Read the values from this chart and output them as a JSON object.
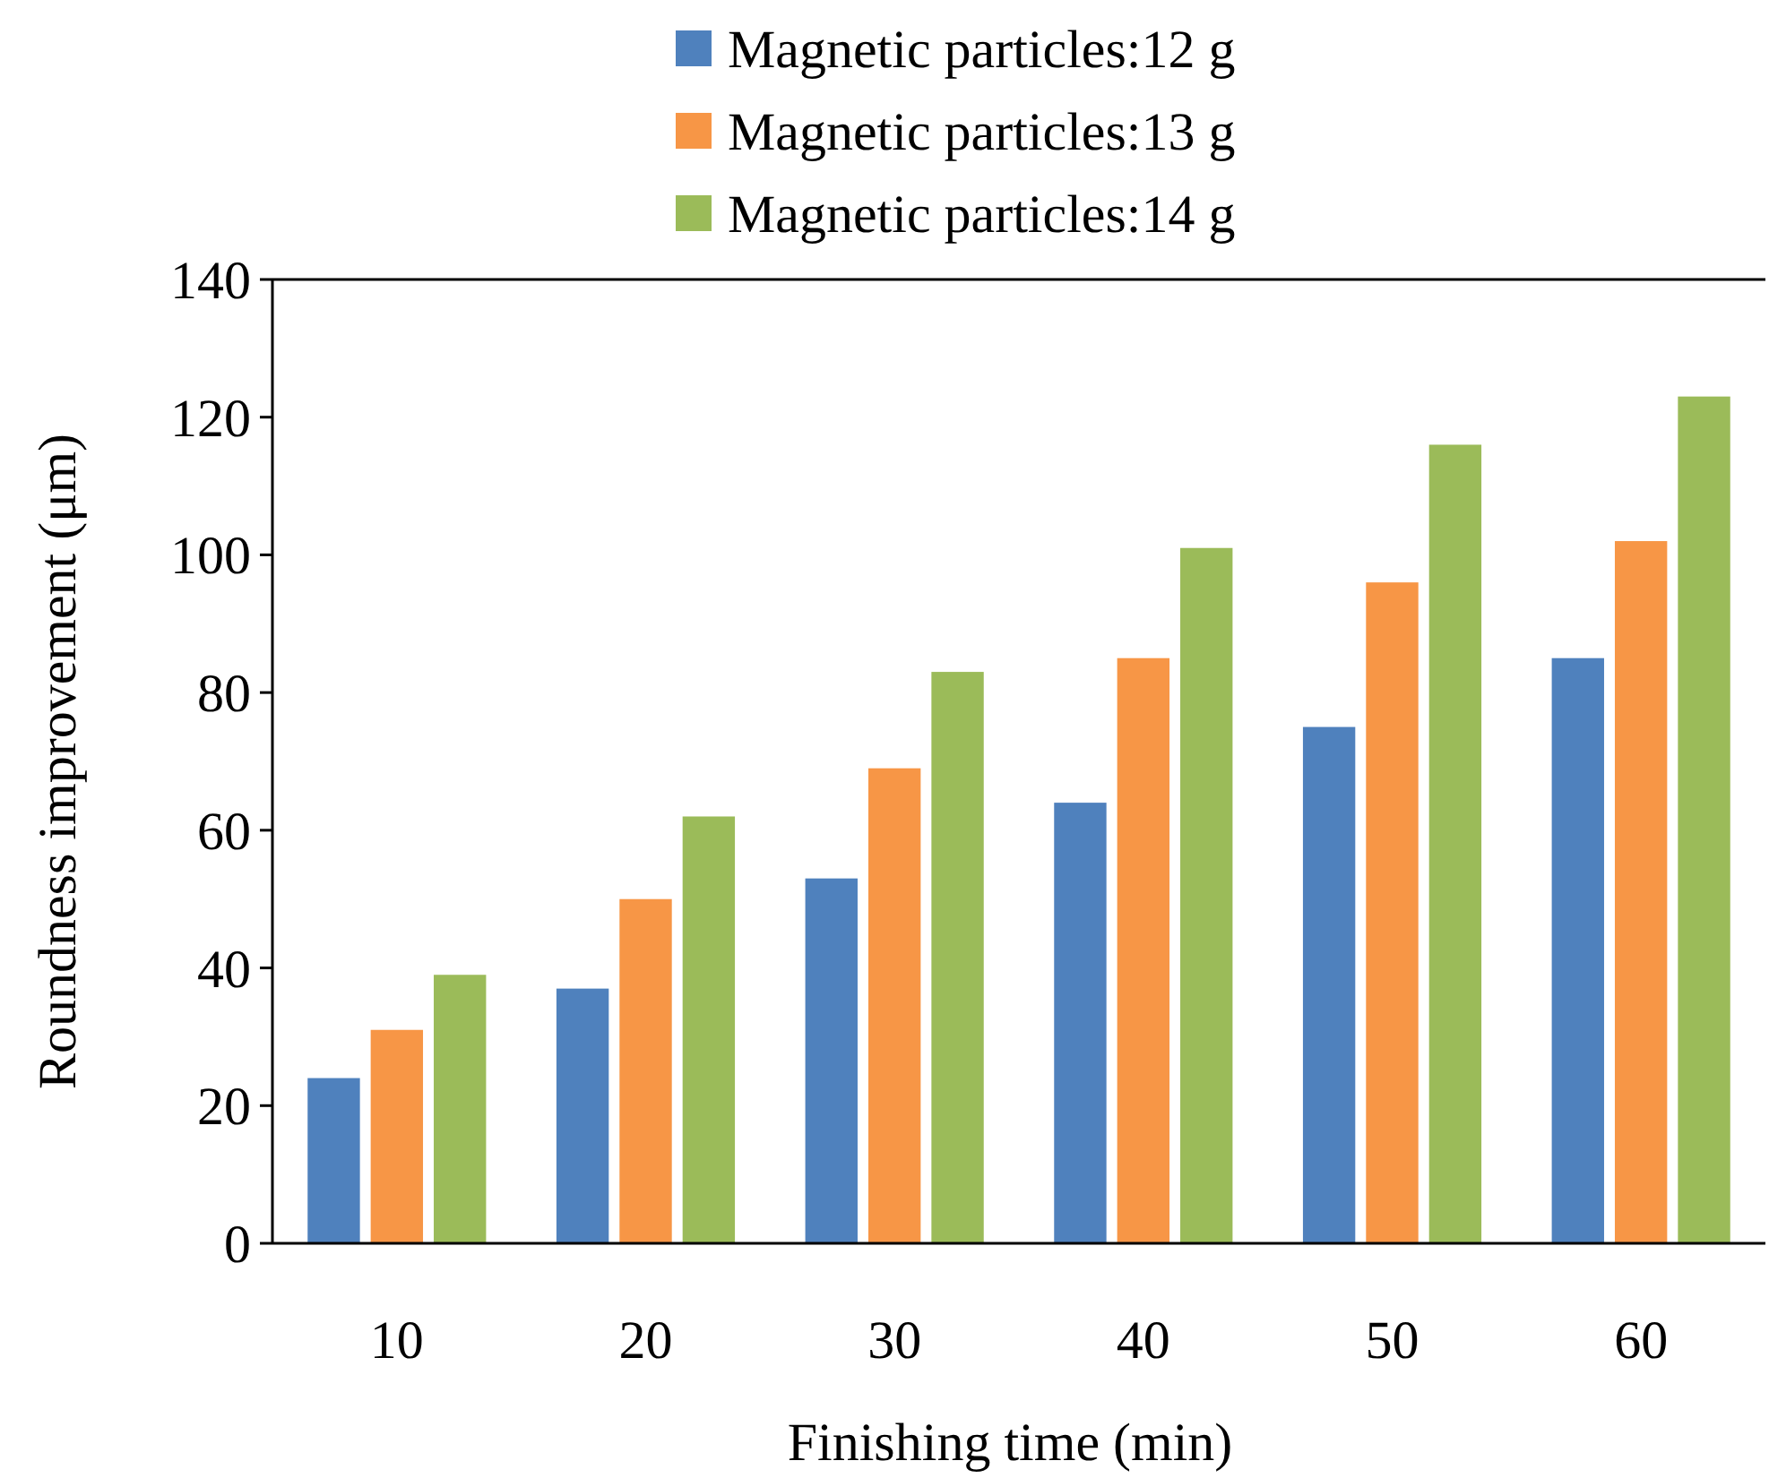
{
  "chart_data": {
    "type": "bar",
    "xlabel": "Finishing time (min)",
    "ylabel": "Roundness improvement (μm)",
    "categories": [
      "10",
      "20",
      "30",
      "40",
      "50",
      "60"
    ],
    "series": [
      {
        "name": "Magnetic particles:12 g",
        "color": "#4f81bd",
        "values": [
          24,
          37,
          53,
          64,
          75,
          85
        ]
      },
      {
        "name": "Magnetic particles:13 g",
        "color": "#f79646",
        "values": [
          31,
          50,
          69,
          85,
          96,
          102
        ]
      },
      {
        "name": "Magnetic particles:14 g",
        "color": "#9bbb59",
        "values": [
          39,
          62,
          83,
          101,
          116,
          123
        ]
      }
    ],
    "ylim": [
      0,
      140
    ],
    "yticks": [
      0,
      20,
      40,
      60,
      80,
      100,
      120,
      140
    ],
    "grid": false,
    "legend": "top"
  }
}
